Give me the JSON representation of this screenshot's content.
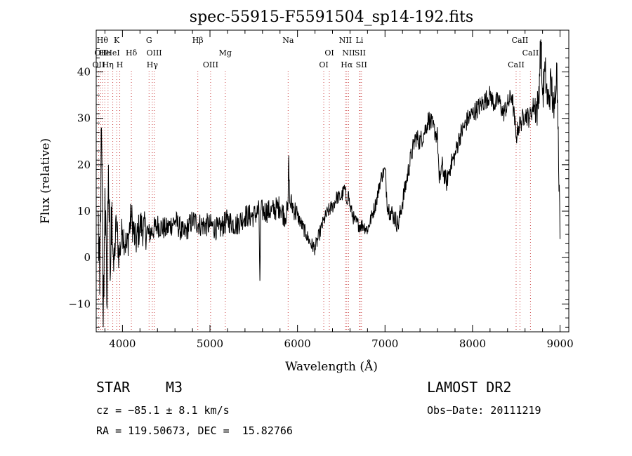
{
  "chart_data": {
    "type": "line",
    "title": "spec-55915-F5591504_sp14-192.fits",
    "xlabel": "Wavelength (Å)",
    "ylabel": "Flux (relative)",
    "xlim": [
      3700,
      9100
    ],
    "ylim": [
      -16,
      49
    ],
    "xticks": [
      4000,
      5000,
      6000,
      7000,
      8000,
      9000
    ],
    "yticks": [
      -10,
      0,
      10,
      20,
      30,
      40
    ],
    "grid": false,
    "series": [
      {
        "name": "flux",
        "x": [
          3720,
          3740,
          3760,
          3780,
          3800,
          3820,
          3840,
          3860,
          3880,
          3900,
          3930,
          3960,
          4000,
          4050,
          4100,
          4150,
          4200,
          4300,
          4400,
          4500,
          4600,
          4700,
          4800,
          4900,
          5000,
          5100,
          5200,
          5300,
          5400,
          5500,
          5560,
          5570,
          5580,
          5600,
          5700,
          5800,
          5850,
          5890,
          5900,
          5910,
          5950,
          6000,
          6100,
          6150,
          6200,
          6250,
          6300,
          6350,
          6400,
          6450,
          6500,
          6540,
          6560,
          6580,
          6600,
          6650,
          6700,
          6750,
          6800,
          6850,
          6900,
          6950,
          7000,
          7030,
          7060,
          7100,
          7150,
          7200,
          7250,
          7300,
          7350,
          7400,
          7450,
          7500,
          7550,
          7600,
          7620,
          7650,
          7700,
          7750,
          7800,
          7850,
          7900,
          7950,
          8000,
          8050,
          8100,
          8150,
          8200,
          8250,
          8300,
          8350,
          8400,
          8450,
          8500,
          8520,
          8550,
          8600,
          8650,
          8700,
          8750,
          8780,
          8800,
          8830,
          8860,
          8900,
          8930,
          8960,
          8980,
          9000
        ],
        "y": [
          10,
          -8,
          28,
          -15,
          15,
          -10,
          20,
          -5,
          12,
          -3,
          8,
          0,
          6,
          2,
          9,
          3,
          7,
          5,
          7,
          6,
          8,
          5,
          8,
          7,
          7,
          6,
          8,
          7,
          9,
          9,
          10,
          -5,
          10,
          10,
          10,
          11,
          9,
          10,
          22,
          12,
          11,
          9,
          5,
          3,
          2,
          5,
          8,
          10,
          11,
          13,
          13,
          15,
          12,
          14,
          11,
          8,
          7,
          7,
          6,
          9,
          12,
          17,
          19,
          11,
          10,
          9,
          7,
          12,
          17,
          22,
          26,
          25,
          27,
          30,
          28,
          26,
          16,
          20,
          16,
          20,
          22,
          26,
          28,
          30,
          31,
          32,
          33,
          34,
          35,
          33,
          34,
          31,
          33,
          35,
          26,
          28,
          29,
          31,
          30,
          33,
          32,
          47,
          35,
          40,
          33,
          38,
          30,
          42,
          28,
          4
        ]
      }
    ],
    "lines": [
      {
        "wl": 3727,
        "label": "OII",
        "row": 2
      },
      {
        "wl": 3750,
        "label": "OII",
        "row": 1
      },
      {
        "wl": 3771,
        "label": "Hθ",
        "row": 0
      },
      {
        "wl": 3798,
        "label": "He",
        "row": 1
      },
      {
        "wl": 3835,
        "label": "Hη",
        "row": 2
      },
      {
        "wl": 3889,
        "label": "HeI",
        "row": 1
      },
      {
        "wl": 3934,
        "label": "K",
        "row": 0
      },
      {
        "wl": 3969,
        "label": "H",
        "row": 2
      },
      {
        "wl": 4102,
        "label": "Hδ",
        "row": 1
      },
      {
        "wl": 4304,
        "label": "G",
        "row": 0
      },
      {
        "wl": 4341,
        "label": "Hγ",
        "row": 2
      },
      {
        "wl": 4363,
        "label": "OIII",
        "row": 1
      },
      {
        "wl": 4861,
        "label": "Hβ",
        "row": 0
      },
      {
        "wl": 5007,
        "label": "OIII",
        "row": 2
      },
      {
        "wl": 5175,
        "label": "Mg",
        "row": 1
      },
      {
        "wl": 5893,
        "label": "Na",
        "row": 0
      },
      {
        "wl": 6300,
        "label": "OI",
        "row": 2
      },
      {
        "wl": 6364,
        "label": "OI",
        "row": 1
      },
      {
        "wl": 6548,
        "label": "NII",
        "row": 0
      },
      {
        "wl": 6563,
        "label": "Hα",
        "row": 2
      },
      {
        "wl": 6584,
        "label": "NII",
        "row": 1
      },
      {
        "wl": 6708,
        "label": "Li",
        "row": 0
      },
      {
        "wl": 6716,
        "label": "SII",
        "row": 1
      },
      {
        "wl": 6731,
        "label": "SII",
        "row": 2
      }
    ],
    "ca_lines": [
      {
        "wl": 8498,
        "label": "CaII",
        "row": 2
      },
      {
        "wl": 8542,
        "label": "CaII",
        "row": 0
      },
      {
        "wl": 8662,
        "label": "CaII",
        "row": 1
      }
    ]
  },
  "info": {
    "class": "STAR",
    "subclass": "M3",
    "survey": "LAMOST DR2",
    "cz": "cz = −85.1 ± 8.1 km/s",
    "obs_date": "Obs−Date: 20111219",
    "radec": "RA = 119.50673, DEC =  15.82766"
  }
}
